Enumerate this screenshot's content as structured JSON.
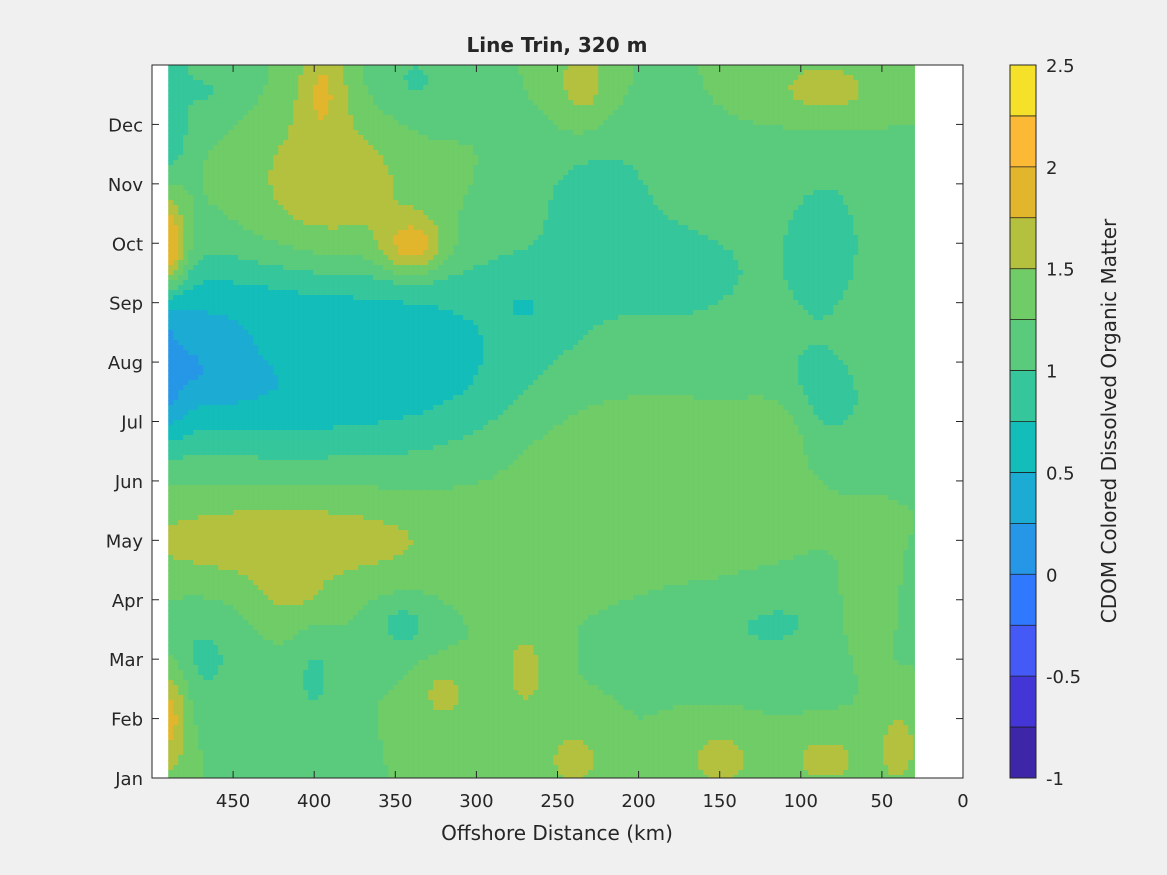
{
  "chart_data": {
    "type": "heatmap",
    "subtype": "filled-contour",
    "title": "Line Trin, 320 m",
    "xlabel": "Offshore Distance (km)",
    "ylabel": "",
    "xlim": [
      500,
      0
    ],
    "x_direction": "reversed",
    "x_ticks": [
      450,
      400,
      350,
      300,
      250,
      200,
      150,
      100,
      50,
      0
    ],
    "x_tick_labels": [
      "450",
      "400",
      "350",
      "300",
      "250",
      "200",
      "150",
      "100",
      "50",
      "0"
    ],
    "y_ticks": [
      1,
      2,
      3,
      4,
      5,
      6,
      7,
      8,
      9,
      10,
      11,
      12
    ],
    "y_tick_labels": [
      "Jan",
      "Feb",
      "Mar",
      "Apr",
      "May",
      "Jun",
      "Jul",
      "Aug",
      "Sep",
      "Oct",
      "Nov",
      "Dec"
    ],
    "ylim": [
      1,
      13
    ],
    "data_x_range": [
      490,
      30
    ],
    "colorbar": {
      "label": "CDOM Colored Dissolved Organic Matter",
      "clim": [
        -1,
        2.5
      ],
      "level_step": 0.25,
      "tick_values": [
        -1,
        -0.5,
        0,
        0.5,
        1,
        1.5,
        2,
        2.5
      ],
      "tick_labels": [
        "-1",
        "-0.5",
        "0",
        "0.5",
        "1",
        "1.5",
        "2",
        "2.5"
      ],
      "colors": [
        "#3e26a8",
        "#4435d6",
        "#4459f5",
        "#3079ff",
        "#2696e6",
        "#1cabd3",
        "#13bdb9",
        "#35c79b",
        "#5acb7c",
        "#6fcc66",
        "#b3c13e",
        "#e2b62c",
        "#fbb936",
        "#f6e12a"
      ]
    },
    "grid": false,
    "background_field": 1.25,
    "features": [
      {
        "x": 490,
        "y": 8.2,
        "rx": 14,
        "ry": 1.1,
        "value": -0.85
      },
      {
        "x": 460,
        "y": 8.1,
        "rx": 60,
        "ry": 1.0,
        "value": -0.1
      },
      {
        "x": 370,
        "y": 8.2,
        "rx": 60,
        "ry": 0.9,
        "value": -0.05
      },
      {
        "x": 470,
        "y": 8.0,
        "rx": 20,
        "ry": 0.4,
        "value": -0.4
      },
      {
        "x": 385,
        "y": 8.1,
        "rx": 12,
        "ry": 0.3,
        "value": -0.3
      },
      {
        "x": 410,
        "y": 8.3,
        "rx": 110,
        "ry": 1.8,
        "value": 0.5
      },
      {
        "x": 330,
        "y": 8.0,
        "rx": 60,
        "ry": 1.2,
        "value": 0.7
      },
      {
        "x": 265,
        "y": 9.0,
        "rx": 30,
        "ry": 0.7,
        "value": 0.6
      },
      {
        "x": 225,
        "y": 10.5,
        "rx": 40,
        "ry": 1.5,
        "value": 0.85
      },
      {
        "x": 180,
        "y": 9.5,
        "rx": 90,
        "ry": 1.6,
        "value": 0.95
      },
      {
        "x": 85,
        "y": 10.0,
        "rx": 40,
        "ry": 2.0,
        "value": 0.95
      },
      {
        "x": 340,
        "y": 12.6,
        "rx": 30,
        "ry": 0.9,
        "value": 0.9
      },
      {
        "x": 490,
        "y": 12.2,
        "rx": 15,
        "ry": 1.3,
        "value": 0.7
      },
      {
        "x": 465,
        "y": 12.5,
        "rx": 30,
        "ry": 0.7,
        "value": 0.95
      },
      {
        "x": 90,
        "y": 7.3,
        "rx": 40,
        "ry": 1.1,
        "value": 0.9
      },
      {
        "x": 120,
        "y": 3.7,
        "rx": 60,
        "ry": 1.0,
        "value": 0.95
      },
      {
        "x": 470,
        "y": 3.0,
        "rx": 30,
        "ry": 1.0,
        "value": 0.95
      },
      {
        "x": 400,
        "y": 2.7,
        "rx": 15,
        "ry": 0.9,
        "value": 0.95
      },
      {
        "x": 345,
        "y": 3.6,
        "rx": 20,
        "ry": 0.5,
        "value": 0.9
      },
      {
        "x": 420,
        "y": 5.0,
        "rx": 120,
        "ry": 0.8,
        "value": 1.65
      },
      {
        "x": 415,
        "y": 4.3,
        "rx": 25,
        "ry": 0.7,
        "value": 1.6
      },
      {
        "x": 390,
        "y": 11.0,
        "rx": 60,
        "ry": 1.4,
        "value": 1.65
      },
      {
        "x": 395,
        "y": 12.5,
        "rx": 15,
        "ry": 1.0,
        "value": 1.8
      },
      {
        "x": 340,
        "y": 10.0,
        "rx": 20,
        "ry": 0.5,
        "value": 1.9
      },
      {
        "x": 490,
        "y": 10.0,
        "rx": 12,
        "ry": 0.8,
        "value": 2.0
      },
      {
        "x": 490,
        "y": 2.0,
        "rx": 12,
        "ry": 0.9,
        "value": 1.85
      },
      {
        "x": 235,
        "y": 12.7,
        "rx": 20,
        "ry": 0.8,
        "value": 1.6
      },
      {
        "x": 85,
        "y": 12.6,
        "rx": 40,
        "ry": 0.6,
        "value": 1.6
      },
      {
        "x": 240,
        "y": 1.3,
        "rx": 20,
        "ry": 0.6,
        "value": 1.6
      },
      {
        "x": 150,
        "y": 1.3,
        "rx": 25,
        "ry": 0.6,
        "value": 1.6
      },
      {
        "x": 85,
        "y": 1.3,
        "rx": 25,
        "ry": 0.5,
        "value": 1.6
      },
      {
        "x": 40,
        "y": 1.5,
        "rx": 15,
        "ry": 0.8,
        "value": 1.6
      },
      {
        "x": 270,
        "y": 2.8,
        "rx": 15,
        "ry": 0.8,
        "value": 1.6
      },
      {
        "x": 320,
        "y": 2.4,
        "rx": 15,
        "ry": 0.5,
        "value": 1.6
      },
      {
        "x": 120,
        "y": 6.7,
        "rx": 20,
        "ry": 0.7,
        "value": 1.55
      },
      {
        "x": 60,
        "y": 4.0,
        "rx": 15,
        "ry": 1.0,
        "value": 1.5
      },
      {
        "x": 200,
        "y": 6.0,
        "rx": 70,
        "ry": 1.2,
        "value": 1.45
      },
      {
        "x": 150,
        "y": 5.5,
        "rx": 60,
        "ry": 1.2,
        "value": 1.4
      }
    ]
  }
}
